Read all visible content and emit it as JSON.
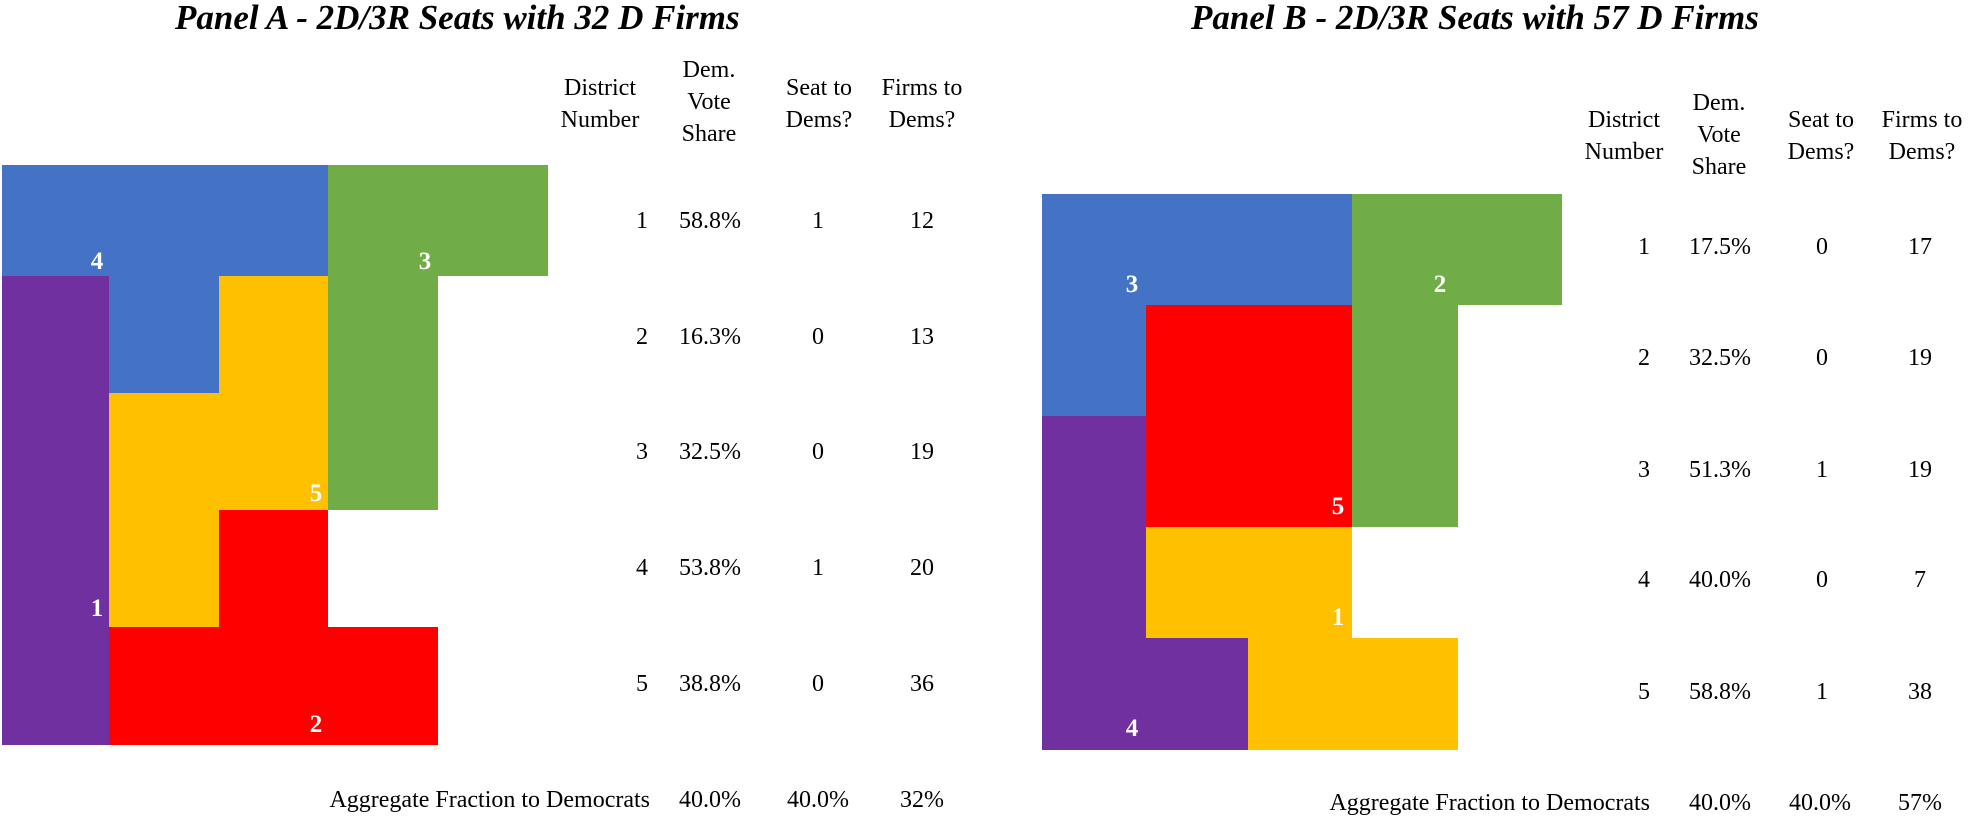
{
  "panels": [
    {
      "title": "Panel A - 2D/3R Seats with 32 D Firms",
      "colors": {
        "purple": "#7030a0",
        "blue": "#4472c4",
        "green": "#70ad47",
        "yellow": "#ffc000",
        "red": "#ff0000"
      },
      "district_labels": [
        "4",
        "3",
        "5",
        "1",
        "2"
      ],
      "headers": [
        "District Number",
        "Dem. Vote Share",
        "Seat to Dems?",
        "Firms to Dems?"
      ],
      "rows": [
        {
          "district": "1",
          "share": "58.8%",
          "seat": "1",
          "firms": "12"
        },
        {
          "district": "2",
          "share": "16.3%",
          "seat": "0",
          "firms": "13"
        },
        {
          "district": "3",
          "share": "32.5%",
          "seat": "0",
          "firms": "19"
        },
        {
          "district": "4",
          "share": "53.8%",
          "seat": "1",
          "firms": "20"
        },
        {
          "district": "5",
          "share": "38.8%",
          "seat": "0",
          "firms": "36"
        }
      ],
      "aggregate": {
        "label": "Aggregate Fraction to Democrats",
        "share": "40.0%",
        "seat": "40.0%",
        "firms": "32%"
      }
    },
    {
      "title": "Panel B - 2D/3R Seats with 57 D Firms",
      "colors": {
        "purple": "#7030a0",
        "blue": "#4472c4",
        "green": "#70ad47",
        "yellow": "#ffc000",
        "red": "#ff0000"
      },
      "district_labels": [
        "3",
        "2",
        "5",
        "1",
        "4"
      ],
      "headers": [
        "District Number",
        "Dem. Vote Share",
        "Seat to Dems?",
        "Firms to Dems?"
      ],
      "rows": [
        {
          "district": "1",
          "share": "17.5%",
          "seat": "0",
          "firms": "17"
        },
        {
          "district": "2",
          "share": "32.5%",
          "seat": "0",
          "firms": "19"
        },
        {
          "district": "3",
          "share": "51.3%",
          "seat": "1",
          "firms": "19"
        },
        {
          "district": "4",
          "share": "40.0%",
          "seat": "0",
          "firms": "7"
        },
        {
          "district": "5",
          "share": "58.8%",
          "seat": "1",
          "firms": "38"
        }
      ],
      "aggregate": {
        "label": "Aggregate Fraction to Democrats",
        "share": "40.0%",
        "seat": "40.0%",
        "firms": "57%"
      }
    }
  ]
}
